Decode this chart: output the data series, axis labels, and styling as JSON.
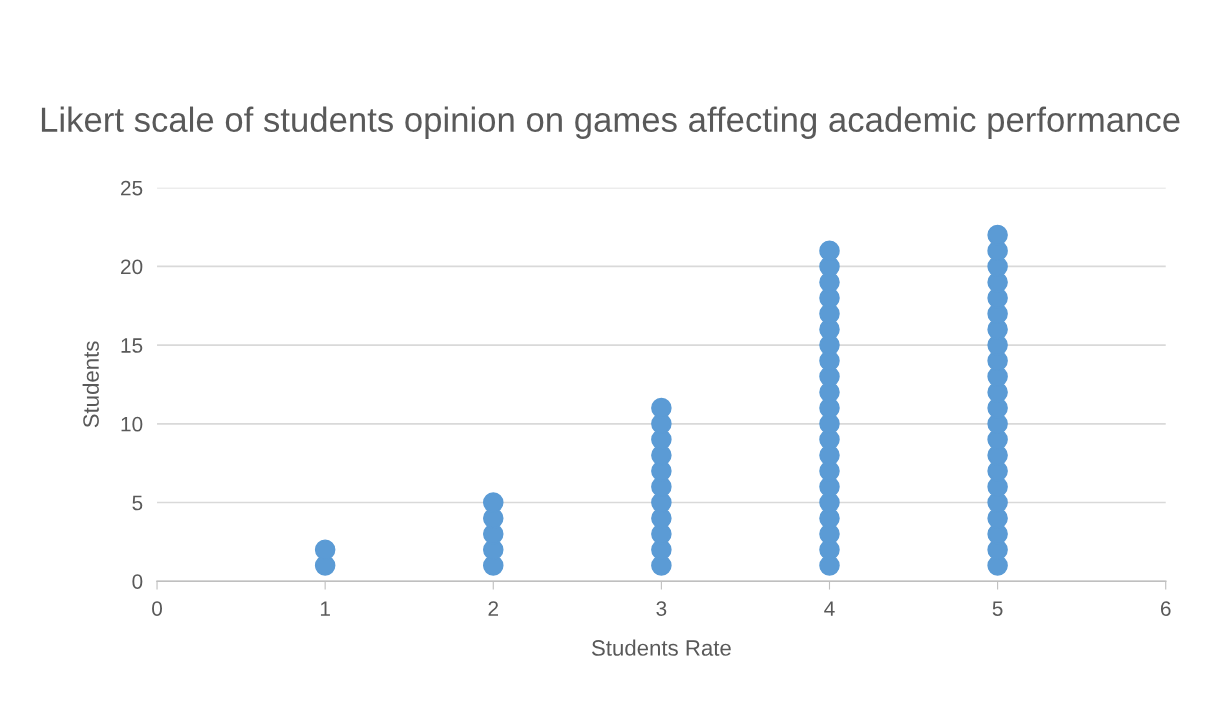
{
  "chart_data": {
    "type": "scatter",
    "title": "Likert scale of students opinion on games affecting academic performance",
    "xlabel": "Students Rate",
    "ylabel": "Students",
    "series": [
      {
        "color": "#5b9bd5",
        "x": [
          1,
          1,
          2,
          2,
          2,
          2,
          2,
          3,
          3,
          3,
          3,
          3,
          3,
          3,
          3,
          3,
          3,
          3,
          4,
          4,
          4,
          4,
          4,
          4,
          4,
          4,
          4,
          4,
          4,
          4,
          4,
          4,
          4,
          4,
          4,
          4,
          4,
          4,
          4,
          5,
          5,
          5,
          5,
          5,
          5,
          5,
          5,
          5,
          5,
          5,
          5,
          5,
          5,
          5,
          5,
          5,
          5,
          5,
          5,
          5,
          5
        ],
        "values": [
          1,
          2,
          1,
          2,
          3,
          4,
          5,
          1,
          2,
          3,
          4,
          5,
          6,
          7,
          8,
          9,
          10,
          11,
          1,
          2,
          3,
          4,
          5,
          6,
          7,
          8,
          9,
          10,
          11,
          12,
          13,
          14,
          15,
          16,
          17,
          18,
          19,
          20,
          21,
          1,
          2,
          3,
          4,
          5,
          6,
          7,
          8,
          9,
          10,
          11,
          12,
          13,
          14,
          15,
          16,
          17,
          18,
          19,
          20,
          21,
          22
        ]
      }
    ],
    "xlim": [
      0,
      6
    ],
    "xticks": [
      0,
      1,
      2,
      3,
      4,
      5,
      6
    ],
    "ylim": [
      0,
      25
    ],
    "yticks": [
      0,
      5,
      10,
      15,
      20,
      25
    ],
    "grid": "y",
    "marker": "circle",
    "legend": false
  }
}
